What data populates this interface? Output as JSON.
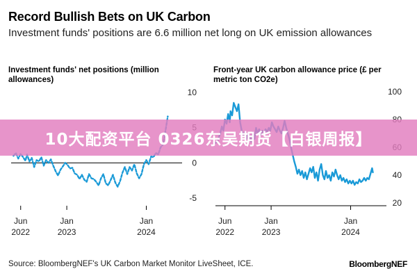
{
  "header": {
    "title": "Record Bullish Bets on UK Carbon",
    "subtitle": "Investment funds' positions are 6.6 million net long on UK emission allowances"
  },
  "footer": {
    "source": "Source: BloombergNEF's UK Carbon Market Monitor LiveSheet, ICE.",
    "brand": "BloombergNEF"
  },
  "banner": {
    "text": "10大配资平台 0326东吴期货【白银周报】"
  },
  "colors": {
    "series": "#1a9ad7",
    "zero_line": "#000000",
    "axis": "#000000"
  },
  "chart_data": [
    {
      "type": "line",
      "title": "Investment funds' net positions (million allowances)",
      "x_labels": [
        {
          "t": 2022.42,
          "lines": [
            "Jun",
            "2022"
          ]
        },
        {
          "t": 2023.0,
          "lines": [
            "Jan",
            "2023"
          ]
        },
        {
          "t": 2024.0,
          "lines": [
            "Jan",
            "2024"
          ]
        }
      ],
      "y_ticks": [
        10,
        5,
        0,
        -5
      ],
      "ylim": [
        -5.5,
        10.5
      ],
      "xlim": [
        2022.3,
        2024.45
      ],
      "zero_line": 0,
      "y_axis_side": "right",
      "series": [
        {
          "line_style": "dashed",
          "points": [
            [
              2022.33,
              1.0
            ],
            [
              2022.36,
              1.4
            ],
            [
              2022.39,
              0.6
            ],
            [
              2022.42,
              1.3
            ],
            [
              2022.45,
              0.8
            ],
            [
              2022.48,
              0.3
            ],
            [
              2022.5,
              1.2
            ],
            [
              2022.53,
              0.2
            ],
            [
              2022.56,
              0.7
            ],
            [
              2022.59,
              -0.6
            ],
            [
              2022.62,
              0.4
            ],
            [
              2022.65,
              0.2
            ],
            [
              2022.68,
              0.8
            ],
            [
              2022.71,
              -0.4
            ],
            [
              2022.74,
              0.4
            ],
            [
              2022.77,
              0.0
            ],
            [
              2022.8,
              0.5
            ],
            [
              2022.83,
              -0.4
            ],
            [
              2022.86,
              -1.2
            ],
            [
              2022.89,
              -1.8
            ],
            [
              2022.92,
              -1.0
            ],
            [
              2022.95,
              -0.5
            ],
            [
              2022.98,
              0.0
            ],
            [
              2023.01,
              -0.3
            ],
            [
              2023.04,
              -0.8
            ],
            [
              2023.07,
              -0.7
            ],
            [
              2023.1,
              -1.5
            ],
            [
              2023.13,
              -1.7
            ],
            [
              2023.16,
              -2.3
            ],
            [
              2023.19,
              -1.7
            ],
            [
              2023.22,
              -2.4
            ],
            [
              2023.25,
              -2.7
            ],
            [
              2023.28,
              -1.6
            ],
            [
              2023.31,
              -2.2
            ],
            [
              2023.34,
              -2.3
            ],
            [
              2023.37,
              -2.7
            ],
            [
              2023.4,
              -3.2
            ],
            [
              2023.43,
              -2.2
            ],
            [
              2023.46,
              -1.6
            ],
            [
              2023.49,
              -2.9
            ],
            [
              2023.52,
              -3.2
            ],
            [
              2023.55,
              -2.5
            ],
            [
              2023.58,
              -1.7
            ],
            [
              2023.61,
              -2.8
            ],
            [
              2023.64,
              -3.4
            ],
            [
              2023.67,
              -2.6
            ],
            [
              2023.7,
              -1.4
            ],
            [
              2023.73,
              -0.6
            ],
            [
              2023.76,
              -1.6
            ],
            [
              2023.79,
              -0.6
            ],
            [
              2023.82,
              -1.1
            ],
            [
              2023.85,
              -0.2
            ],
            [
              2023.88,
              -1.5
            ],
            [
              2023.91,
              -2.2
            ],
            [
              2023.94,
              -1.6
            ],
            [
              2023.97,
              -0.2
            ],
            [
              2024.0,
              0.4
            ],
            [
              2024.03,
              -0.2
            ],
            [
              2024.06,
              0.9
            ],
            [
              2024.09,
              0.8
            ],
            [
              2024.12,
              1.4
            ],
            [
              2024.15,
              1.2
            ],
            [
              2024.18,
              2.2
            ],
            [
              2024.21,
              2.6
            ],
            [
              2024.24,
              4.5
            ],
            [
              2024.27,
              6.6
            ]
          ]
        }
      ]
    },
    {
      "type": "line",
      "title": "Front-year UK carbon allowance price (£ per metric ton CO2e)",
      "x_labels": [
        {
          "t": 2022.42,
          "lines": [
            "Jun",
            "2022"
          ]
        },
        {
          "t": 2023.0,
          "lines": [
            "Jan",
            "2023"
          ]
        },
        {
          "t": 2024.0,
          "lines": [
            "Jan",
            "2024"
          ]
        }
      ],
      "y_ticks": [
        100,
        80,
        60,
        40,
        20
      ],
      "ylim": [
        18,
        102
      ],
      "xlim": [
        2022.3,
        2024.45
      ],
      "y_axis_side": "right",
      "series": [
        {
          "line_style": "solid",
          "points": [
            [
              2022.3,
              63
            ],
            [
              2022.33,
              65
            ],
            [
              2022.36,
              70
            ],
            [
              2022.38,
              75
            ],
            [
              2022.4,
              72
            ],
            [
              2022.42,
              80
            ],
            [
              2022.44,
              77
            ],
            [
              2022.46,
              84
            ],
            [
              2022.48,
              78
            ],
            [
              2022.49,
              86
            ],
            [
              2022.51,
              83
            ],
            [
              2022.53,
              92
            ],
            [
              2022.55,
              89
            ],
            [
              2022.57,
              86
            ],
            [
              2022.59,
              91
            ],
            [
              2022.61,
              78
            ],
            [
              2022.63,
              72
            ],
            [
              2022.65,
              69
            ],
            [
              2022.67,
              71
            ],
            [
              2022.69,
              66
            ],
            [
              2022.71,
              70
            ],
            [
              2022.73,
              68
            ],
            [
              2022.75,
              64
            ],
            [
              2022.77,
              71
            ],
            [
              2022.79,
              66
            ],
            [
              2022.81,
              74
            ],
            [
              2022.83,
              70
            ],
            [
              2022.85,
              73
            ],
            [
              2022.87,
              69
            ],
            [
              2022.89,
              72
            ],
            [
              2022.91,
              70
            ],
            [
              2022.93,
              73
            ],
            [
              2022.95,
              71
            ],
            [
              2022.97,
              74
            ],
            [
              2022.99,
              72
            ],
            [
              2023.01,
              78
            ],
            [
              2023.03,
              75
            ],
            [
              2023.05,
              73
            ],
            [
              2023.07,
              71
            ],
            [
              2023.09,
              75
            ],
            [
              2023.11,
              72
            ],
            [
              2023.13,
              70
            ],
            [
              2023.15,
              74
            ],
            [
              2023.17,
              79
            ],
            [
              2023.19,
              74
            ],
            [
              2023.21,
              70
            ],
            [
              2023.23,
              66
            ],
            [
              2023.25,
              60
            ],
            [
              2023.27,
              55
            ],
            [
              2023.29,
              50
            ],
            [
              2023.31,
              46
            ],
            [
              2023.33,
              41
            ],
            [
              2023.35,
              44
            ],
            [
              2023.37,
              40
            ],
            [
              2023.39,
              43
            ],
            [
              2023.41,
              38
            ],
            [
              2023.43,
              42
            ],
            [
              2023.45,
              37
            ],
            [
              2023.47,
              41
            ],
            [
              2023.49,
              45
            ],
            [
              2023.51,
              42
            ],
            [
              2023.53,
              46
            ],
            [
              2023.55,
              38
            ],
            [
              2023.57,
              42
            ],
            [
              2023.59,
              36
            ],
            [
              2023.61,
              44
            ],
            [
              2023.63,
              48
            ],
            [
              2023.65,
              40
            ],
            [
              2023.67,
              37
            ],
            [
              2023.69,
              43
            ],
            [
              2023.71,
              38
            ],
            [
              2023.73,
              40
            ],
            [
              2023.75,
              36
            ],
            [
              2023.77,
              42
            ],
            [
              2023.79,
              39
            ],
            [
              2023.81,
              44
            ],
            [
              2023.83,
              40
            ],
            [
              2023.85,
              37
            ],
            [
              2023.87,
              40
            ],
            [
              2023.89,
              36
            ],
            [
              2023.91,
              38
            ],
            [
              2023.93,
              35
            ],
            [
              2023.95,
              37
            ],
            [
              2023.97,
              34
            ],
            [
              2023.99,
              36
            ],
            [
              2024.01,
              34
            ],
            [
              2024.03,
              36
            ],
            [
              2024.05,
              33
            ],
            [
              2024.07,
              35
            ],
            [
              2024.09,
              34
            ],
            [
              2024.11,
              37
            ],
            [
              2024.13,
              35
            ],
            [
              2024.15,
              36
            ],
            [
              2024.17,
              38
            ],
            [
              2024.19,
              36
            ],
            [
              2024.21,
              38
            ],
            [
              2024.23,
              37
            ],
            [
              2024.25,
              41
            ],
            [
              2024.27,
              45
            ],
            [
              2024.28,
              42
            ]
          ]
        }
      ]
    }
  ]
}
